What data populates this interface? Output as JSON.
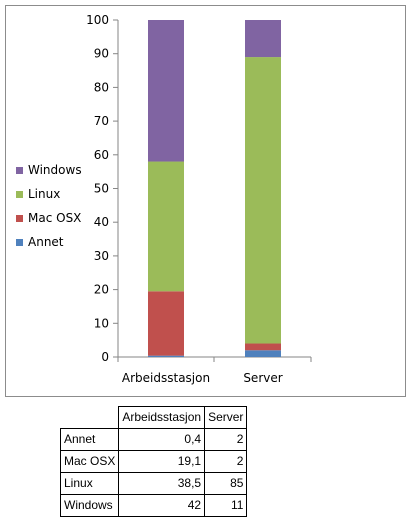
{
  "chart_data": {
    "type": "bar",
    "stacked": true,
    "categories": [
      "Arbeidsstasjon",
      "Server"
    ],
    "series": [
      {
        "name": "Annet",
        "values": [
          0.4,
          2
        ],
        "color": "#4F81BD"
      },
      {
        "name": "Mac OSX",
        "values": [
          19.1,
          2
        ],
        "color": "#C0504D"
      },
      {
        "name": "Linux",
        "values": [
          38.5,
          85
        ],
        "color": "#9BBB59"
      },
      {
        "name": "Windows",
        "values": [
          42,
          11
        ],
        "color": "#8064A2"
      }
    ],
    "ylim": [
      0,
      100
    ],
    "yticks": [
      "0",
      "10",
      "20",
      "30",
      "40",
      "50",
      "60",
      "70",
      "80",
      "90",
      "100"
    ],
    "grid": false,
    "legend_position": "left",
    "title": "",
    "xlabel": "",
    "ylabel": ""
  },
  "table": {
    "headers": [
      "Arbeidsstasjon",
      "Server"
    ],
    "rows": [
      {
        "label": "Annet",
        "values": [
          "0,4",
          "2"
        ]
      },
      {
        "label": "Mac OSX",
        "values": [
          "19,1",
          "2"
        ]
      },
      {
        "label": "Linux",
        "values": [
          "38,5",
          "85"
        ]
      },
      {
        "label": "Windows",
        "values": [
          "42",
          "11"
        ]
      }
    ]
  }
}
